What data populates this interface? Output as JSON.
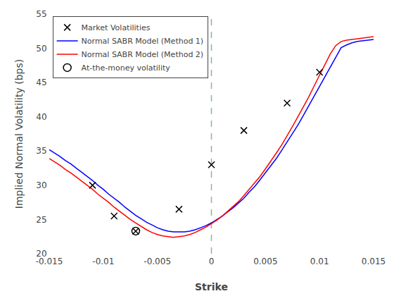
{
  "chart_data": {
    "type": "line",
    "xlabel": "Strike",
    "ylabel": "Implied Normal Volatility (bps)",
    "xlim": [
      -0.015,
      0.015
    ],
    "ylim": [
      20,
      55
    ],
    "xticks": [
      -0.015,
      -0.01,
      -0.005,
      0,
      0.005,
      0.01,
      0.015
    ],
    "yticks": [
      20,
      25,
      30,
      35,
      40,
      45,
      50,
      55
    ],
    "grid": false,
    "legend": "upper left",
    "series": [
      {
        "name": "Market Volatilities",
        "color": "#000000",
        "marker": "x",
        "line_style": "none",
        "x": [
          -0.011,
          -0.009,
          -0.007,
          -0.003,
          0.0,
          0.003,
          0.007,
          0.01
        ],
        "values": [
          30.0,
          25.5,
          23.3,
          26.5,
          33.0,
          38.0,
          42.0,
          46.5
        ]
      },
      {
        "name": "Normal SABR Model (Method 1)",
        "color": "#0000FF",
        "line_style": "solid",
        "x": [
          -0.015,
          -0.0145,
          -0.014,
          -0.0135,
          -0.013,
          -0.0125,
          -0.012,
          -0.0115,
          -0.011,
          -0.0105,
          -0.01,
          -0.0095,
          -0.009,
          -0.0085,
          -0.008,
          -0.0075,
          -0.007,
          -0.0065,
          -0.006,
          -0.0055,
          -0.005,
          -0.0045,
          -0.004,
          -0.0035,
          -0.003,
          -0.0025,
          -0.002,
          -0.0015,
          -0.001,
          -0.0005,
          0.0,
          0.0005,
          0.001,
          0.0015,
          0.002,
          0.0025,
          0.003,
          0.0035,
          0.004,
          0.0045,
          0.005,
          0.0055,
          0.006,
          0.0065,
          0.007,
          0.0075,
          0.008,
          0.0085,
          0.009,
          0.0095,
          0.01,
          0.0105,
          0.011,
          0.0115,
          0.012,
          0.0125,
          0.013,
          0.0135,
          0.014,
          0.0145,
          0.015
        ],
        "values": [
          35.2,
          34.7,
          34.2,
          33.6,
          33.1,
          32.5,
          31.9,
          31.3,
          30.7,
          30.0,
          29.4,
          28.7,
          28.1,
          27.5,
          26.8,
          26.2,
          25.6,
          25.1,
          24.6,
          24.2,
          23.8,
          23.5,
          23.3,
          23.2,
          23.2,
          23.2,
          23.3,
          23.5,
          23.8,
          24.1,
          24.5,
          25.0,
          25.5,
          26.1,
          26.7,
          27.4,
          28.1,
          29.0,
          29.8,
          30.8,
          31.8,
          32.8,
          33.9,
          35.1,
          36.3,
          37.5,
          38.8,
          40.2,
          41.6,
          43.0,
          44.5,
          45.9,
          47.3,
          48.7,
          50.1,
          50.5,
          50.8,
          51.0,
          51.1,
          51.2,
          51.3
        ]
      },
      {
        "name": "Normal SABR Model (Method 2)",
        "color": "#FF0000",
        "line_style": "solid",
        "x": [
          -0.015,
          -0.0145,
          -0.014,
          -0.0135,
          -0.013,
          -0.0125,
          -0.012,
          -0.0115,
          -0.011,
          -0.0105,
          -0.01,
          -0.0095,
          -0.009,
          -0.0085,
          -0.008,
          -0.0075,
          -0.007,
          -0.0065,
          -0.006,
          -0.0055,
          -0.005,
          -0.0045,
          -0.004,
          -0.0035,
          -0.003,
          -0.0025,
          -0.002,
          -0.0015,
          -0.001,
          -0.0005,
          0.0,
          0.0005,
          0.001,
          0.0015,
          0.002,
          0.0025,
          0.003,
          0.0035,
          0.004,
          0.0045,
          0.005,
          0.0055,
          0.006,
          0.0065,
          0.007,
          0.0075,
          0.008,
          0.0085,
          0.009,
          0.0095,
          0.01,
          0.0105,
          0.011,
          0.0115,
          0.012,
          0.0125,
          0.013,
          0.0135,
          0.014,
          0.0145,
          0.015
        ],
        "values": [
          33.9,
          33.4,
          32.9,
          32.3,
          31.8,
          31.2,
          30.6,
          30.0,
          29.4,
          28.7,
          28.1,
          27.5,
          26.8,
          26.2,
          25.6,
          25.0,
          24.5,
          24.0,
          23.5,
          23.1,
          22.8,
          22.6,
          22.5,
          22.4,
          22.5,
          22.6,
          22.8,
          23.1,
          23.5,
          23.9,
          24.4,
          24.9,
          25.5,
          26.2,
          26.9,
          27.6,
          28.5,
          29.4,
          30.3,
          31.3,
          32.4,
          33.5,
          34.7,
          35.9,
          37.2,
          38.6,
          40.0,
          41.4,
          42.9,
          44.5,
          46.1,
          47.6,
          49.2,
          50.4,
          51.0,
          51.2,
          51.3,
          51.4,
          51.5,
          51.6,
          51.7
        ]
      },
      {
        "name": "At-the-money volatility",
        "color": "#000000",
        "marker": "circle_open",
        "line_style": "none",
        "x": [
          -0.007
        ],
        "values": [
          23.3
        ]
      }
    ],
    "vlines": [
      {
        "x": 0.0,
        "color": "#88BB88",
        "line_style": "dashed"
      }
    ]
  }
}
